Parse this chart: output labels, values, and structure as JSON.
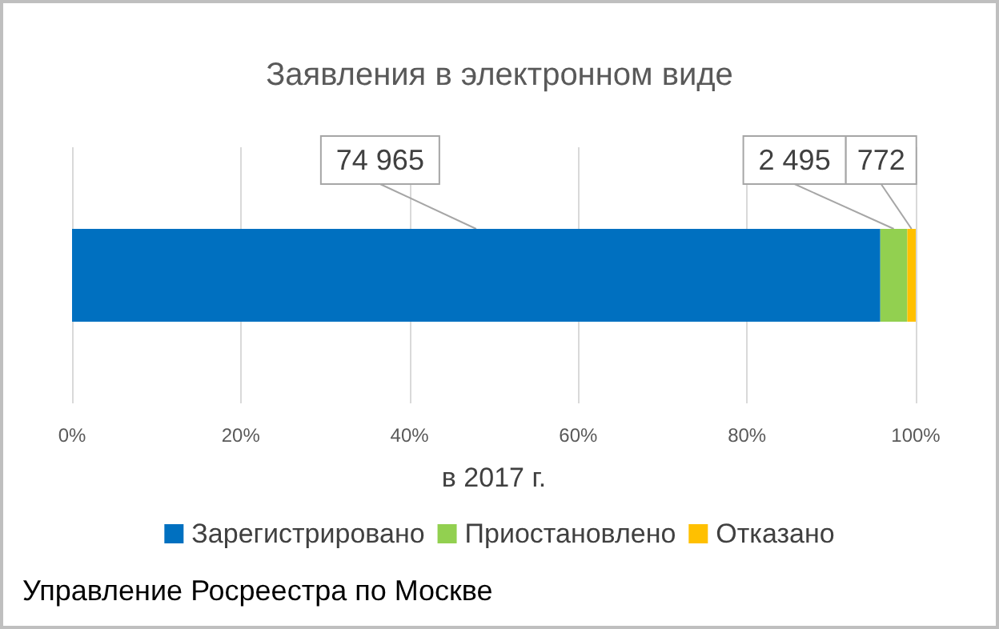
{
  "chart_data": {
    "type": "bar",
    "orientation": "horizontal",
    "stacked": true,
    "title": "Заявления в электронном виде",
    "xlabel": "в 2017 г.",
    "categories": [
      null
    ],
    "series": [
      {
        "name": "Зарегистрировано",
        "color": "#0070c0",
        "values": [
          95.8
        ]
      },
      {
        "name": "Приостановлено",
        "color": "#92d050",
        "values": [
          3.2
        ]
      },
      {
        "name": "Отказано",
        "color": "#ffc000",
        "values": [
          1.0
        ]
      }
    ],
    "xlim": [
      0,
      100
    ],
    "xticks": [
      {
        "value": 0,
        "label": "0%"
      },
      {
        "value": 20,
        "label": "20%"
      },
      {
        "value": 40,
        "label": "40%"
      },
      {
        "value": 60,
        "label": "60%"
      },
      {
        "value": 80,
        "label": "80%"
      },
      {
        "value": 100,
        "label": "100%"
      }
    ],
    "grid": "x",
    "legend": "bottom",
    "annotations": [
      "74 965",
      "2 495",
      "772",
      "Управление Росреестра по Москве"
    ]
  }
}
